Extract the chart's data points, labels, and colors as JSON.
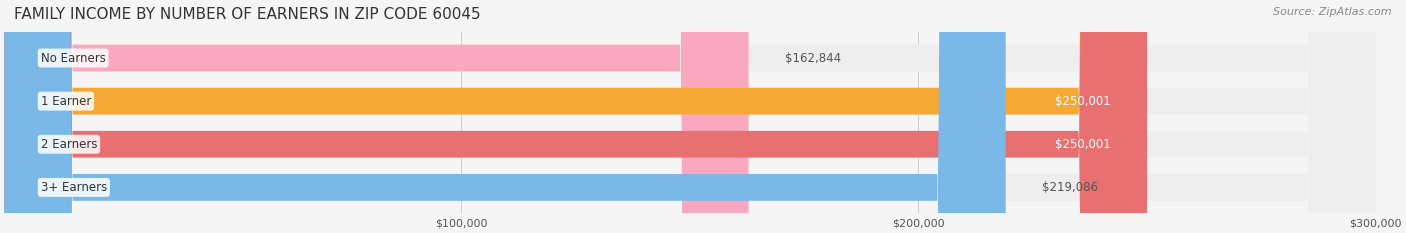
{
  "title": "FAMILY INCOME BY NUMBER OF EARNERS IN ZIP CODE 60045",
  "source": "Source: ZipAtlas.com",
  "categories": [
    "No Earners",
    "1 Earner",
    "2 Earners",
    "3+ Earners"
  ],
  "values": [
    162844,
    250001,
    250001,
    219086
  ],
  "bar_colors": [
    "#f9a8c0",
    "#f5a833",
    "#e87070",
    "#7ab8e8"
  ],
  "bar_bg_color": "#eeeeee",
  "xlim": [
    0,
    300000
  ],
  "xticks": [
    100000,
    200000,
    300000
  ],
  "xtick_labels": [
    "$100,000",
    "$200,000",
    "$300,000"
  ],
  "value_labels": [
    "$162,844",
    "$250,001",
    "$250,001",
    "$219,086"
  ],
  "value_label_color_inside": "#ffffff",
  "value_label_color_outside": "#555555",
  "title_fontsize": 11,
  "source_fontsize": 8,
  "bar_label_fontsize": 8.5,
  "value_fontsize": 8.5,
  "background_color": "#f5f5f5",
  "bar_height": 0.62,
  "bar_bg_alpha": 1.0
}
